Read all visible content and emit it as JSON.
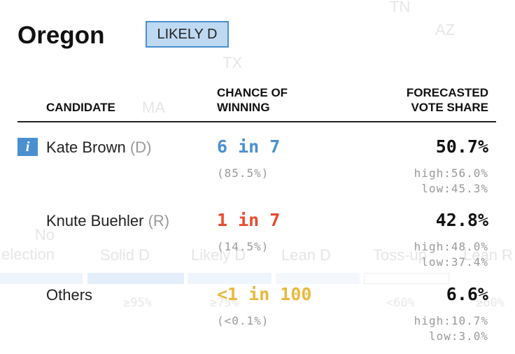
{
  "background": {
    "map_labels": [
      "TN",
      "AZ",
      "TX",
      "MA"
    ],
    "legend": [
      "No election",
      "Solid D",
      "Likely D",
      "Lean D",
      "Toss-up",
      "Lean R"
    ],
    "thresholds": [
      "≥95%",
      "≥75%",
      "<60%",
      "≥60%"
    ]
  },
  "header": {
    "title": "Oregon",
    "rating": "LIKELY D"
  },
  "table": {
    "columns": [
      [
        "CANDIDATE"
      ],
      [
        "CHANCE OF",
        "WINNING"
      ],
      [
        "FORECASTED",
        "VOTE SHARE"
      ]
    ],
    "info_icon": "i",
    "rows": [
      {
        "name": "Kate Brown",
        "party": "(D)",
        "chance": "6 in 7",
        "probability": "(85.5%)",
        "vote_share": "50.7%",
        "high": "high:56.0%",
        "low": "low:45.3%",
        "color": "#4a90d0"
      },
      {
        "name": "Knute Buehler",
        "party": "(R)",
        "chance": "1 in 7",
        "probability": "(14.5%)",
        "vote_share": "42.8%",
        "high": "high:48.0%",
        "low": "low:37.4%",
        "color": "#ea4a2e"
      },
      {
        "name": "Others",
        "party": null,
        "chance": "<1 in 100",
        "probability": "(<0.1%)",
        "vote_share": "6.6%",
        "high": "high:10.7%",
        "low": "low:3.0%",
        "color": "#e9b93c"
      }
    ]
  }
}
